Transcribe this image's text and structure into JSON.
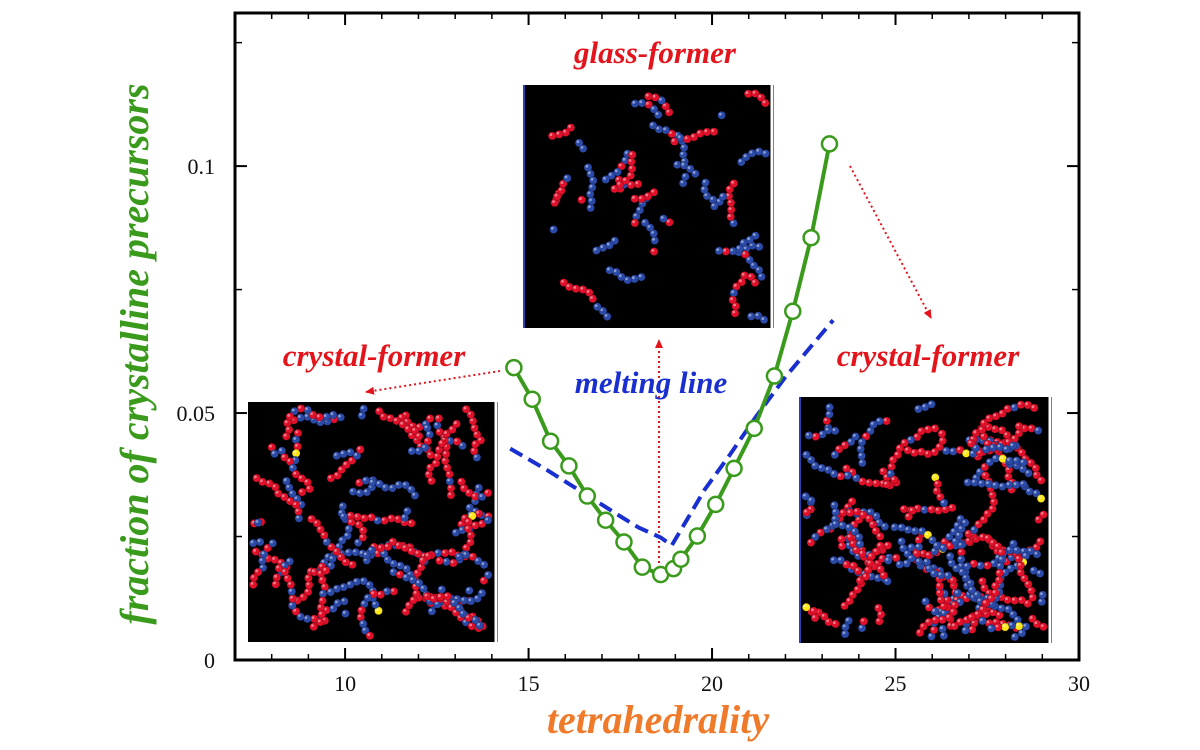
{
  "chart_data": {
    "type": "line",
    "xlabel": "tetrahedrality",
    "ylabel": "fraction of crystalline precursors",
    "xlim": [
      7,
      30
    ],
    "ylim": [
      0,
      0.131
    ],
    "xticks": [
      10,
      15,
      20,
      25,
      30
    ],
    "xtick_labels": [
      "10",
      "15",
      "20",
      "25",
      "30"
    ],
    "yticks": [
      0,
      0.05,
      0.1
    ],
    "ytick_labels": [
      "0",
      "0.05",
      "0.1"
    ],
    "grid": false,
    "series": [
      {
        "style": "solid line with open circle markers",
        "color": "#3a9a1c",
        "x": [
          14.6,
          15.1,
          15.6,
          16.1,
          16.6,
          17.1,
          17.6,
          18.1,
          18.6,
          18.95,
          19.15,
          19.6,
          20.1,
          20.6,
          21.15,
          21.7,
          22.2,
          22.7,
          23.2
        ],
        "y": [
          0.0592,
          0.0528,
          0.0443,
          0.0393,
          0.0332,
          0.0283,
          0.0239,
          0.0188,
          0.0173,
          0.0185,
          0.0204,
          0.0251,
          0.0315,
          0.0388,
          0.0469,
          0.0575,
          0.0706,
          0.0855,
          0.1045
        ]
      },
      {
        "name": "melting line",
        "style": "dashed line",
        "color": "#1a2fd0",
        "x": [
          14.5,
          15.5,
          16.5,
          17.5,
          18.0,
          18.6,
          18.9,
          19.3,
          19.8,
          20.5,
          21.2,
          22.0,
          22.8,
          23.3
        ],
        "y": [
          0.0428,
          0.0385,
          0.0338,
          0.0291,
          0.0268,
          0.0248,
          0.0232,
          0.0282,
          0.0345,
          0.0417,
          0.0493,
          0.0573,
          0.0644,
          0.0688
        ]
      }
    ],
    "annotations": {
      "glass_former": "glass-former",
      "crystal_former_left": "crystal-former",
      "crystal_former_right": "crystal-former",
      "melting_line": "melting line"
    },
    "colors": {
      "ylabel": "#3a9a1c",
      "xlabel": "#ef7a2a",
      "annotation_red": "#e3141b",
      "melting_line": "#1a2fd0",
      "particle_red": "#e0102a",
      "particle_blue": "#2b4aa8",
      "particle_yellow": "#ffe81a",
      "snapshot_bg": "#000000"
    }
  }
}
